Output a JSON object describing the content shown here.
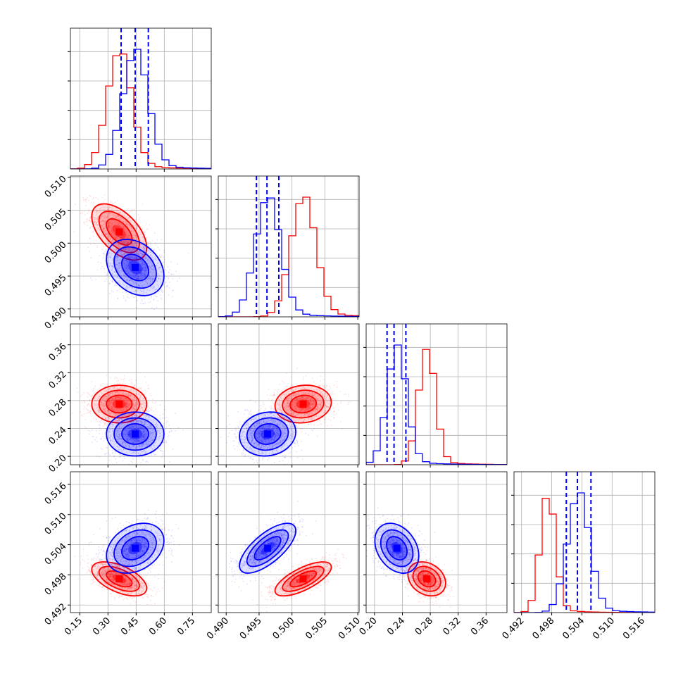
{
  "colors": {
    "red": "#ff0000",
    "blue": "#0000ff",
    "grid": "#b0b0b0"
  },
  "chart_data": {
    "type": "corner",
    "grid": true,
    "parameters": [
      {
        "range": [
          0.1,
          0.85
        ],
        "ticks": [
          "0.15",
          "0.30",
          "0.45",
          "0.60",
          "0.75"
        ]
      },
      {
        "range": [
          0.4888,
          0.5102
        ],
        "ticks": [
          "0.490",
          "0.495",
          "0.500",
          "0.505",
          "0.510"
        ]
      },
      {
        "range": [
          0.188,
          0.39
        ],
        "ticks": [
          "0.20",
          "0.24",
          "0.28",
          "0.32",
          "0.36"
        ]
      },
      {
        "range": [
          0.4905,
          0.5185
        ],
        "ticks": [
          "0.492",
          "0.498",
          "0.504",
          "0.510",
          "0.516"
        ]
      }
    ],
    "series": [
      {
        "color": "red",
        "mean": [
          0.36,
          0.5017,
          0.275,
          0.4972
        ],
        "std": [
          0.065,
          0.0019,
          0.012,
          0.0015
        ],
        "cov": [
          [
            0,
            1,
            -0.55
          ],
          [
            0,
            3,
            -0.55
          ],
          [
            1,
            2,
            0.1
          ],
          [
            1,
            3,
            0.7
          ],
          [
            2,
            3,
            -0.25
          ]
        ],
        "quantiles": null
      },
      {
        "color": "blue",
        "mean": [
          0.445,
          0.4963,
          0.232,
          0.5033
        ],
        "std": [
          0.068,
          0.0019,
          0.014,
          0.0022
        ],
        "cov": [
          [
            0,
            1,
            -0.3
          ],
          [
            0,
            3,
            0.3
          ],
          [
            1,
            2,
            0.1
          ],
          [
            1,
            3,
            0.7
          ],
          [
            2,
            3,
            -0.3
          ]
        ],
        "quantiles": [
          [
            0.37,
            0.445,
            0.515
          ],
          [
            0.4946,
            0.4962,
            0.498
          ],
          [
            0.218,
            0.228,
            0.245
          ],
          [
            0.5009,
            0.5031,
            0.5058
          ]
        ]
      }
    ]
  }
}
